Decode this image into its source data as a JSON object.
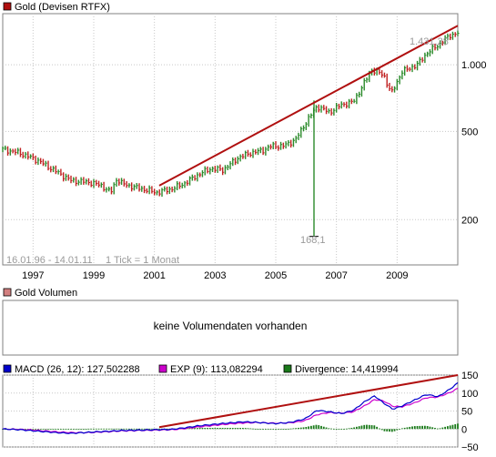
{
  "colors": {
    "price_up": "#2a8a2a",
    "price_down": "#c02020",
    "trendline": "#b01010",
    "macd": "#0000cc",
    "exp": "#cc00cc",
    "divergence": "#1a7a1a",
    "grid": "#c8c8c8",
    "legend_gold": "#b01010",
    "legend_volume": "#d27f7f",
    "legend_macd": "#0000cc",
    "legend_exp": "#cc00cc",
    "legend_divergence": "#1a7a1a"
  },
  "price_panel": {
    "legend": "Gold (Devisen RTFX)",
    "date_range_label": "16.01.96 - 14.01.11",
    "tick_label": "1 Tick = 1 Monat",
    "last_value_label": "1.431,28",
    "spike_low_label": "168,1"
  },
  "volume_panel": {
    "legend": "Gold Volumen",
    "message": "keine Volumendaten vorhanden"
  },
  "macd_panel": {
    "macd_legend": "MACD (26, 12): 127,502288",
    "exp_legend": "EXP (9): 113,082294",
    "divergence_legend": "Divergence: 14,419994"
  },
  "chart_data": [
    {
      "type": "line",
      "subtype": "monthly price bars",
      "scale": "log",
      "series_label": "Gold (Devisen RTFX)",
      "x_ticks": [
        "1997",
        "1999",
        "2001",
        "2003",
        "2005",
        "2007",
        "2009"
      ],
      "y_ticks": [
        {
          "value": 200,
          "label": "200"
        },
        {
          "value": 500,
          "label": "500"
        },
        {
          "value": 1000,
          "label": "1.000"
        }
      ],
      "y_range": [
        125,
        1700
      ],
      "x_range": [
        1996.04,
        2011.04
      ],
      "anchor_points": [
        [
          1996.04,
          415
        ],
        [
          1996.6,
          400
        ],
        [
          1997.2,
          370
        ],
        [
          1997.8,
          330
        ],
        [
          1998.3,
          300
        ],
        [
          1998.9,
          295
        ],
        [
          1999.3,
          285
        ],
        [
          1999.6,
          265
        ],
        [
          1999.8,
          305
        ],
        [
          2000.0,
          290
        ],
        [
          2000.4,
          280
        ],
        [
          2000.8,
          272
        ],
        [
          2001.1,
          265
        ],
        [
          2001.6,
          275
        ],
        [
          2002.0,
          290
        ],
        [
          2002.5,
          320
        ],
        [
          2002.9,
          340
        ],
        [
          2003.3,
          335
        ],
        [
          2003.8,
          380
        ],
        [
          2004.2,
          400
        ],
        [
          2004.6,
          410
        ],
        [
          2004.9,
          430
        ],
        [
          2005.3,
          430
        ],
        [
          2005.7,
          460
        ],
        [
          2006.0,
          540
        ],
        [
          2006.4,
          650
        ],
        [
          2006.8,
          610
        ],
        [
          2007.2,
          660
        ],
        [
          2007.6,
          680
        ],
        [
          2007.9,
          800
        ],
        [
          2008.2,
          950
        ],
        [
          2008.6,
          900
        ],
        [
          2008.85,
          740
        ],
        [
          2009.2,
          930
        ],
        [
          2009.7,
          1000
        ],
        [
          2010.0,
          1120
        ],
        [
          2010.4,
          1230
        ],
        [
          2010.8,
          1360
        ],
        [
          2011.04,
          1390
        ]
      ],
      "spike": {
        "x": 2006.3,
        "low": 168.1,
        "high": 690
      },
      "trendline": {
        "from": [
          2001.2,
          285
        ],
        "to": [
          2011.04,
          1500
        ]
      },
      "last_value": 1431.28
    },
    {
      "type": "bar",
      "series_label": "Gold Volumen",
      "values": []
    },
    {
      "type": "line",
      "series_label": "MACD",
      "y_ticks": [
        -50,
        0,
        50,
        100,
        150
      ],
      "y_range": [
        -50,
        150
      ],
      "x_range": [
        1996.04,
        2011.04
      ],
      "macd_points": [
        [
          1996.04,
          0
        ],
        [
          1996.6,
          -2
        ],
        [
          1997.2,
          -6
        ],
        [
          1997.8,
          -10
        ],
        [
          1998.3,
          -12
        ],
        [
          1998.9,
          -9
        ],
        [
          1999.3,
          -7
        ],
        [
          1999.6,
          -6
        ],
        [
          2000.0,
          -4
        ],
        [
          2000.6,
          -3
        ],
        [
          2001.1,
          -2
        ],
        [
          2001.6,
          -1
        ],
        [
          2002.0,
          3
        ],
        [
          2002.5,
          9
        ],
        [
          2003.0,
          13
        ],
        [
          2003.5,
          17
        ],
        [
          2004.0,
          20
        ],
        [
          2004.5,
          18
        ],
        [
          2005.0,
          15
        ],
        [
          2005.5,
          18
        ],
        [
          2006.0,
          28
        ],
        [
          2006.4,
          52
        ],
        [
          2006.8,
          48
        ],
        [
          2007.2,
          43
        ],
        [
          2007.6,
          52
        ],
        [
          2008.0,
          78
        ],
        [
          2008.3,
          92
        ],
        [
          2008.6,
          72
        ],
        [
          2008.9,
          55
        ],
        [
          2009.2,
          64
        ],
        [
          2009.6,
          80
        ],
        [
          2010.0,
          96
        ],
        [
          2010.4,
          90
        ],
        [
          2010.8,
          112
        ],
        [
          2011.04,
          128
        ]
      ],
      "exp_points": [
        [
          1996.04,
          0
        ],
        [
          1996.6,
          -1
        ],
        [
          1997.2,
          -4
        ],
        [
          1997.8,
          -8
        ],
        [
          1998.3,
          -10
        ],
        [
          1998.9,
          -10
        ],
        [
          1999.3,
          -8
        ],
        [
          1999.6,
          -7
        ],
        [
          2000.0,
          -5
        ],
        [
          2000.6,
          -4
        ],
        [
          2001.1,
          -3
        ],
        [
          2001.6,
          -2
        ],
        [
          2002.0,
          1
        ],
        [
          2002.5,
          6
        ],
        [
          2003.0,
          10
        ],
        [
          2003.5,
          14
        ],
        [
          2004.0,
          17
        ],
        [
          2004.5,
          18
        ],
        [
          2005.0,
          16
        ],
        [
          2005.5,
          17
        ],
        [
          2006.0,
          23
        ],
        [
          2006.4,
          40
        ],
        [
          2006.8,
          46
        ],
        [
          2007.2,
          44
        ],
        [
          2007.6,
          48
        ],
        [
          2008.0,
          66
        ],
        [
          2008.3,
          82
        ],
        [
          2008.6,
          78
        ],
        [
          2008.9,
          63
        ],
        [
          2009.2,
          62
        ],
        [
          2009.6,
          72
        ],
        [
          2010.0,
          87
        ],
        [
          2010.4,
          89
        ],
        [
          2010.8,
          102
        ],
        [
          2011.04,
          113
        ]
      ],
      "trendline": {
        "from": [
          2001.2,
          5
        ],
        "to": [
          2011.04,
          150
        ]
      }
    }
  ]
}
